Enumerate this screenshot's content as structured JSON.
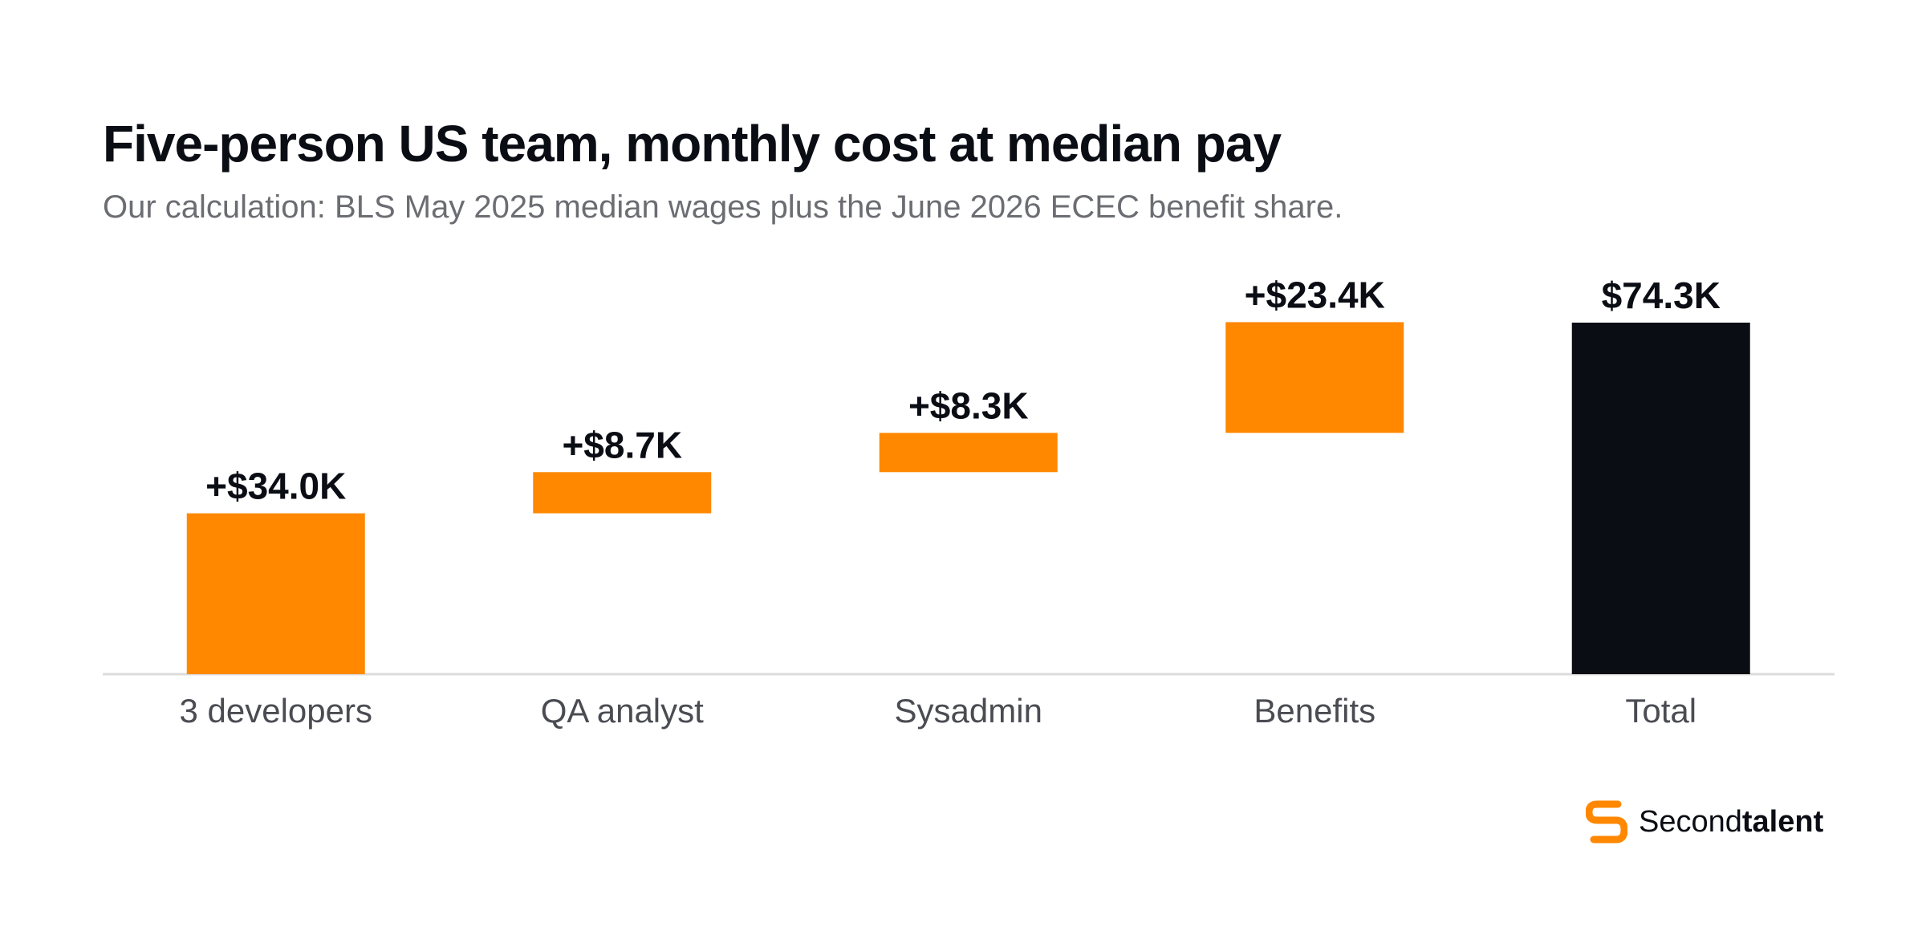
{
  "header": {
    "title": "Five-person US team, monthly cost at median pay",
    "subtitle": "Our calculation: BLS May 2025 median wages plus the June 2026 ECEC benefit share."
  },
  "brand": {
    "name_regular": "Second",
    "name_bold": "talent",
    "logo_icon": "secondtalent-logo-icon",
    "accent_color": "#FF8800"
  },
  "colors": {
    "increase": "#FF8800",
    "total": "#0B0D14",
    "baseline": "#DCDCDC",
    "label": "#0B0D14",
    "category": "#4A4C52"
  },
  "chart_data": {
    "type": "waterfall",
    "title": "Five-person US team, monthly cost at median pay",
    "subtitle": "Our calculation: BLS May 2025 median wages plus the June 2026 ECEC benefit share.",
    "categories": [
      "3 developers",
      "QA analyst",
      "Sysadmin",
      "Benefits",
      "Total"
    ],
    "values": [
      34.0,
      8.7,
      8.3,
      23.4,
      74.3
    ],
    "kinds": [
      "increase",
      "increase",
      "increase",
      "increase",
      "total"
    ],
    "labels": [
      "+$34.0K",
      "+$8.7K",
      "+$8.3K",
      "+$23.4K",
      "$74.3K"
    ],
    "unit": "thousand USD",
    "ylim": [
      0,
      74.3
    ],
    "grid": false,
    "legend": "none"
  }
}
